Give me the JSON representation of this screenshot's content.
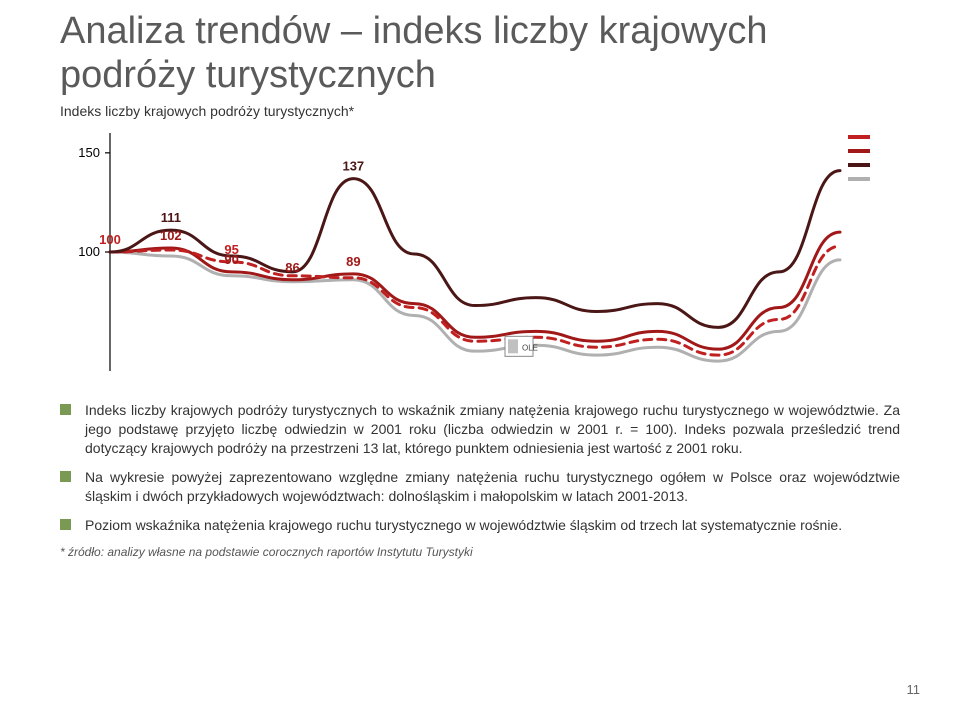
{
  "title": "Analiza trendów – indeks liczby krajowych podróży turystycznych",
  "title_color": "#5a5a5a",
  "subtitle": "Indeks liczby krajowych podróży turystycznych*",
  "chart": {
    "type": "line",
    "background_color": "#ffffff",
    "ylim": [
      40,
      160
    ],
    "ytick_values": [
      100,
      150
    ],
    "ytick_labels": [
      "100",
      "150"
    ],
    "x_count": 13,
    "series": [
      {
        "name": "series-red-solid",
        "color": "#a01818",
        "stroke_width": 3,
        "dash": null,
        "values": [
          100,
          102,
          90,
          86,
          89,
          74,
          57,
          60,
          55,
          60,
          51,
          72,
          110
        ],
        "point_labels": [
          null,
          "102",
          "90",
          "86",
          "89",
          null,
          null,
          null,
          null,
          null,
          null,
          null,
          null
        ],
        "label_color": "#a01818",
        "label_fontsize": 13
      },
      {
        "name": "series-red-dashed",
        "color": "#c02020",
        "stroke_width": 3,
        "dash": "8 6",
        "values": [
          100,
          101,
          95,
          88,
          87,
          72,
          55,
          57,
          52,
          56,
          48,
          66,
          103
        ],
        "point_labels": [
          "100",
          null,
          "95",
          null,
          null,
          null,
          null,
          null,
          null,
          null,
          null,
          null,
          null
        ],
        "label_color": "#c02020",
        "label_fontsize": 13
      },
      {
        "name": "series-darkred",
        "color": "#4a1616",
        "stroke_width": 3,
        "dash": null,
        "values": [
          100,
          111,
          98,
          90,
          137,
          99,
          73,
          77,
          70,
          74,
          62,
          90,
          141
        ],
        "point_labels": [
          null,
          "111",
          null,
          null,
          "137",
          null,
          null,
          null,
          null,
          null,
          null,
          null,
          null
        ],
        "label_color": "#4a1616",
        "label_fontsize": 13
      },
      {
        "name": "series-gray",
        "color": "#b0b0b0",
        "stroke_width": 3,
        "dash": null,
        "values": [
          100,
          98,
          88,
          85,
          86,
          68,
          50,
          53,
          48,
          52,
          45,
          60,
          96
        ],
        "point_labels": [
          null,
          null,
          null,
          null,
          null,
          null,
          null,
          null,
          null,
          null,
          null,
          null,
          null
        ],
        "label_color": "#b0b0b0",
        "label_fontsize": 13
      }
    ],
    "axis_color": "#000000",
    "axis_width": 1.2,
    "axis_label_fontsize": 13,
    "axis_label_color": "#000000",
    "legend_swatches": [
      "#c02020",
      "#a01818",
      "#4a1616",
      "#b0b0b0"
    ],
    "first_point_label": "100"
  },
  "bullets": [
    {
      "color": "#7a9a54",
      "text": "Indeks liczby krajowych podróży turystycznych to wskaźnik zmiany natężenia krajowego ruchu turystycznego w województwie. Za jego podstawę przyjęto liczbę odwiedzin w 2001 roku (liczba odwiedzin w 2001 r. = 100). Indeks pozwala prześledzić trend dotyczący krajowych podróży na przestrzeni 13 lat, którego punktem odniesienia jest wartość z 2001 roku."
    },
    {
      "color": "#7a9a54",
      "text": "Na wykresie powyżej zaprezentowano względne zmiany natężenia ruchu turystycznego ogółem w Polsce oraz województwie śląskim i dwóch przykładowych województwach: dolnośląskim i małopolskim w latach 2001-2013."
    },
    {
      "color": "#7a9a54",
      "text": "Poziom wskaźnika natężenia krajowego ruchu turystycznego w województwie śląskim od trzech lat systematycznie rośnie."
    }
  ],
  "footnote": "* źródło: analizy własne na podstawie corocznych raportów Instytutu Turystyki",
  "pagenum": "11"
}
